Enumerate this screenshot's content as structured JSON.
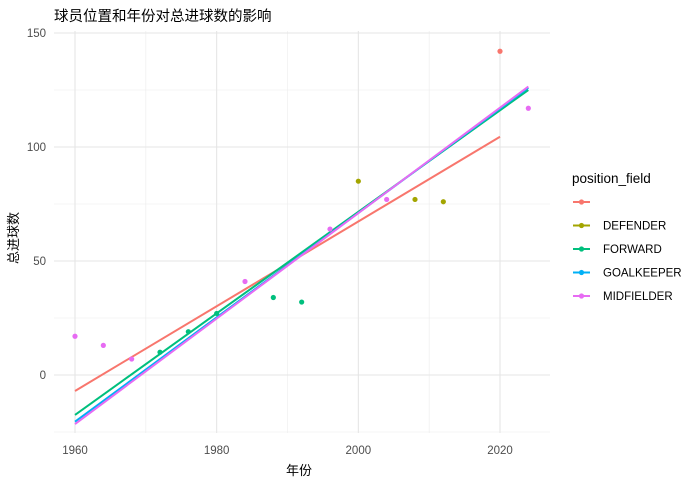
{
  "chart_data": {
    "type": "scatter",
    "title": "球员位置和年份对总进球数的影响",
    "xlabel": "年份",
    "ylabel": "总进球数",
    "xlim": [
      1958,
      2027
    ],
    "ylim": [
      -25,
      151
    ],
    "x_ticks": [
      1960,
      1980,
      2000,
      2020
    ],
    "y_ticks": [
      0,
      50,
      100,
      150
    ],
    "grid": true,
    "legend": {
      "title": "position_field",
      "placement": "right",
      "entries": [
        {
          "label": "",
          "color": "#F8766D"
        },
        {
          "label": "DEFENDER",
          "color": "#A3A500"
        },
        {
          "label": "FORWARD",
          "color": "#00BF7D"
        },
        {
          "label": "GOALKEEPER",
          "color": "#00B0F6"
        },
        {
          "label": "MIDFIELDER",
          "color": "#E76BF3"
        }
      ]
    },
    "series": [
      {
        "name": "",
        "color": "#F8766D",
        "points": [
          {
            "x": 2020,
            "y": 142
          }
        ],
        "fit": [
          {
            "x": 1960,
            "y": -7
          },
          {
            "x": 2020,
            "y": 104.5
          }
        ]
      },
      {
        "name": "DEFENDER",
        "color": "#A3A500",
        "points": [
          {
            "x": 2000,
            "y": 85
          },
          {
            "x": 2008,
            "y": 77
          },
          {
            "x": 2012,
            "y": 76
          }
        ],
        "fit": []
      },
      {
        "name": "FORWARD",
        "color": "#00BF7D",
        "points": [
          {
            "x": 1972,
            "y": 10
          },
          {
            "x": 1976,
            "y": 19
          },
          {
            "x": 1980,
            "y": 27
          },
          {
            "x": 1988,
            "y": 34
          },
          {
            "x": 1992,
            "y": 32
          }
        ],
        "fit": [
          {
            "x": 1960,
            "y": -17.5
          },
          {
            "x": 2024,
            "y": 125
          }
        ]
      },
      {
        "name": "GOALKEEPER",
        "color": "#00B0F6",
        "points": [],
        "fit": [
          {
            "x": 1960,
            "y": -20.5
          },
          {
            "x": 2024,
            "y": 126
          }
        ]
      },
      {
        "name": "MIDFIELDER",
        "color": "#E76BF3",
        "points": [
          {
            "x": 1960,
            "y": 17
          },
          {
            "x": 1964,
            "y": 13
          },
          {
            "x": 1968,
            "y": 7
          },
          {
            "x": 1984,
            "y": 41
          },
          {
            "x": 1996,
            "y": 64
          },
          {
            "x": 2004,
            "y": 77
          },
          {
            "x": 2024,
            "y": 117
          }
        ],
        "fit": [
          {
            "x": 1960,
            "y": -21.5
          },
          {
            "x": 2024,
            "y": 126.5
          }
        ]
      }
    ]
  }
}
